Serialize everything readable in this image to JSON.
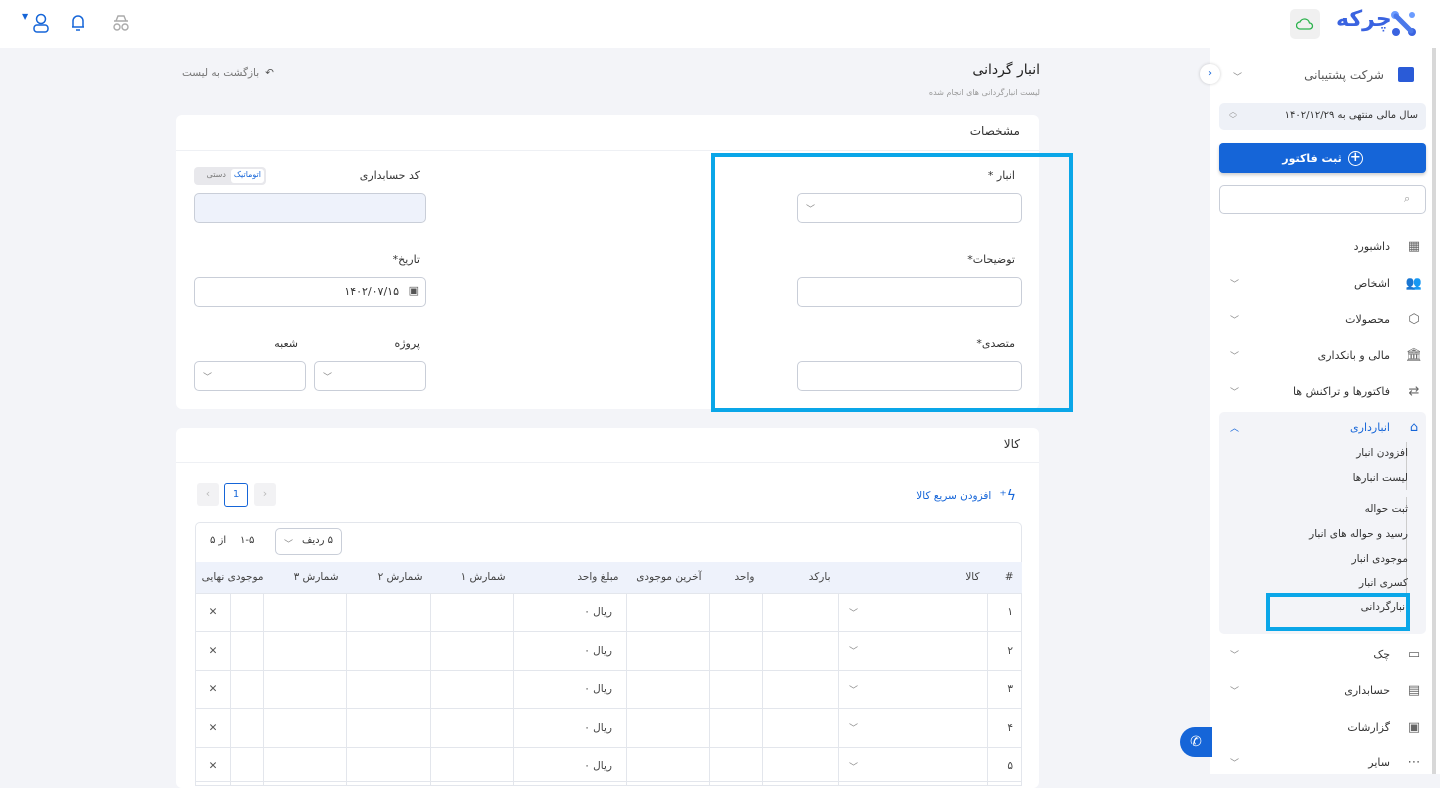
{
  "brand": {
    "name": "چرکه",
    "accent": "#1565d8"
  },
  "topbar": {
    "icons": [
      "user-icon",
      "bell-icon",
      "incognito-icon",
      "cloud-icon"
    ]
  },
  "sidebar": {
    "company": "شرکت پشتیبانی",
    "fiscal_year": "سال مالی منتهی به ۱۴۰۲/۱۲/۲۹",
    "new_invoice": "ثبت فاکتور",
    "search_placeholder": "",
    "items": [
      {
        "label": "داشبورد",
        "icon": "grid-icon"
      },
      {
        "label": "اشخاص",
        "icon": "users-icon"
      },
      {
        "label": "محصولات",
        "icon": "box-icon"
      },
      {
        "label": "مالی و بانکداری",
        "icon": "bank-icon"
      },
      {
        "label": "فاکتورها و تراکنش ها",
        "icon": "exchange-icon"
      },
      {
        "label": "انبارداری",
        "icon": "warehouse-icon"
      },
      {
        "label": "چک",
        "icon": "check-icon"
      },
      {
        "label": "حسابداری",
        "icon": "calculator-icon"
      },
      {
        "label": "گزارشات",
        "icon": "report-icon"
      },
      {
        "label": "سایر",
        "icon": "more-icon"
      }
    ],
    "subitems": [
      "افزودن انبار",
      "لیست انبارها",
      "ثبت حواله",
      "رسید و حواله های انبار",
      "موجودی انبار",
      "کسری انبار",
      "انبارگردانی"
    ]
  },
  "page": {
    "title": "انبار گردانی",
    "subtitle": "لیست انبارگردانی های انجام شده",
    "back": "بازگشت به لیست"
  },
  "specs": {
    "heading": "مشخصات",
    "warehouse_label": "انبار *",
    "description_label": "توضیحات*",
    "responsible_label": "متصدی*",
    "account_code_label": "کد حسابداری",
    "toggle_auto": "اتوماتیک",
    "toggle_manual": "دستی",
    "date_label": "تاریخ*",
    "date_value": "۱۴۰۲/۰۷/۱۵",
    "project_label": "پروژه",
    "branch_label": "شعبه"
  },
  "goods": {
    "heading": "کالا",
    "quick_add": "افزودن سریع کالا",
    "page": "1",
    "rows_per_page": "۵ ردیف",
    "range": "۱-۵",
    "of_total": "از ۵",
    "columns": [
      "#",
      "کالا",
      "بارکد",
      "واحد",
      "آخرین موجودی",
      "مبلغ واحد",
      "شمارش ۱",
      "شمارش ۲",
      "شمارش ۳",
      "موجودی نهایی",
      ""
    ],
    "rows": [
      {
        "n": "۱",
        "price": "ریال ۰"
      },
      {
        "n": "۲",
        "price": "ریال ۰"
      },
      {
        "n": "۳",
        "price": "ریال ۰"
      },
      {
        "n": "۴",
        "price": "ریال ۰"
      },
      {
        "n": "۵",
        "price": "ریال ۰"
      }
    ]
  }
}
